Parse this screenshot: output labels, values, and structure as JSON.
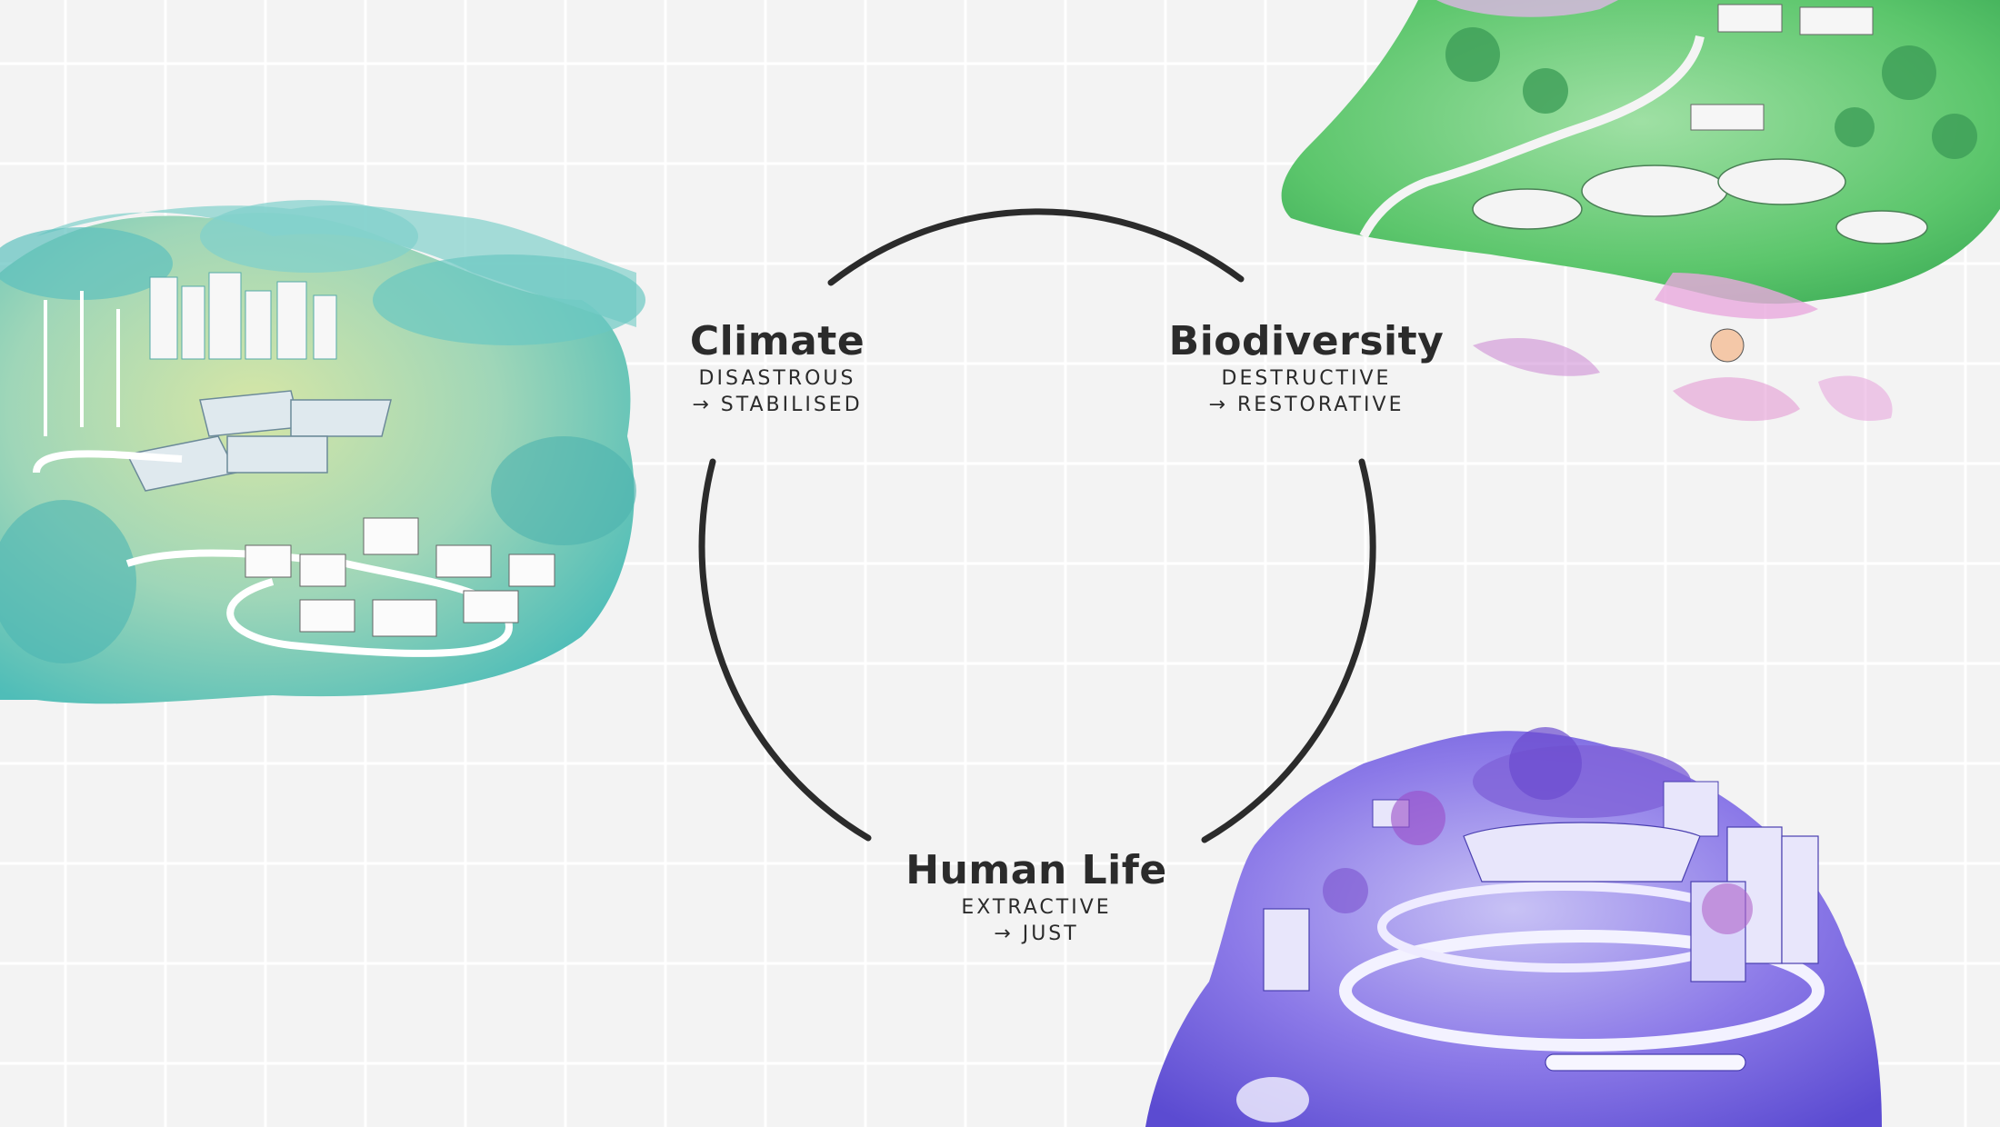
{
  "nodes": {
    "climate": {
      "title": "Climate",
      "line1": "DISASTROUS",
      "line2": "→ STABILISED"
    },
    "biodiversity": {
      "title": "Biodiversity",
      "line1": "DESTRUCTIVE",
      "line2": "→ RESTORATIVE"
    },
    "human_life": {
      "title": "Human Life",
      "line1": "EXTRACTIVE",
      "line2": "→ JUST"
    }
  },
  "colors": {
    "background": "#f3f3f3",
    "grid": "#ffffff",
    "ring": "#2b2b2b",
    "climate_illustration": "#5cc3bd",
    "biodiversity_illustration": "#6fcf7a",
    "human_life_illustration": "#7a64e0"
  },
  "illustrations": [
    "climate-island-illustration",
    "biodiversity-island-illustration",
    "human-life-island-illustration"
  ]
}
